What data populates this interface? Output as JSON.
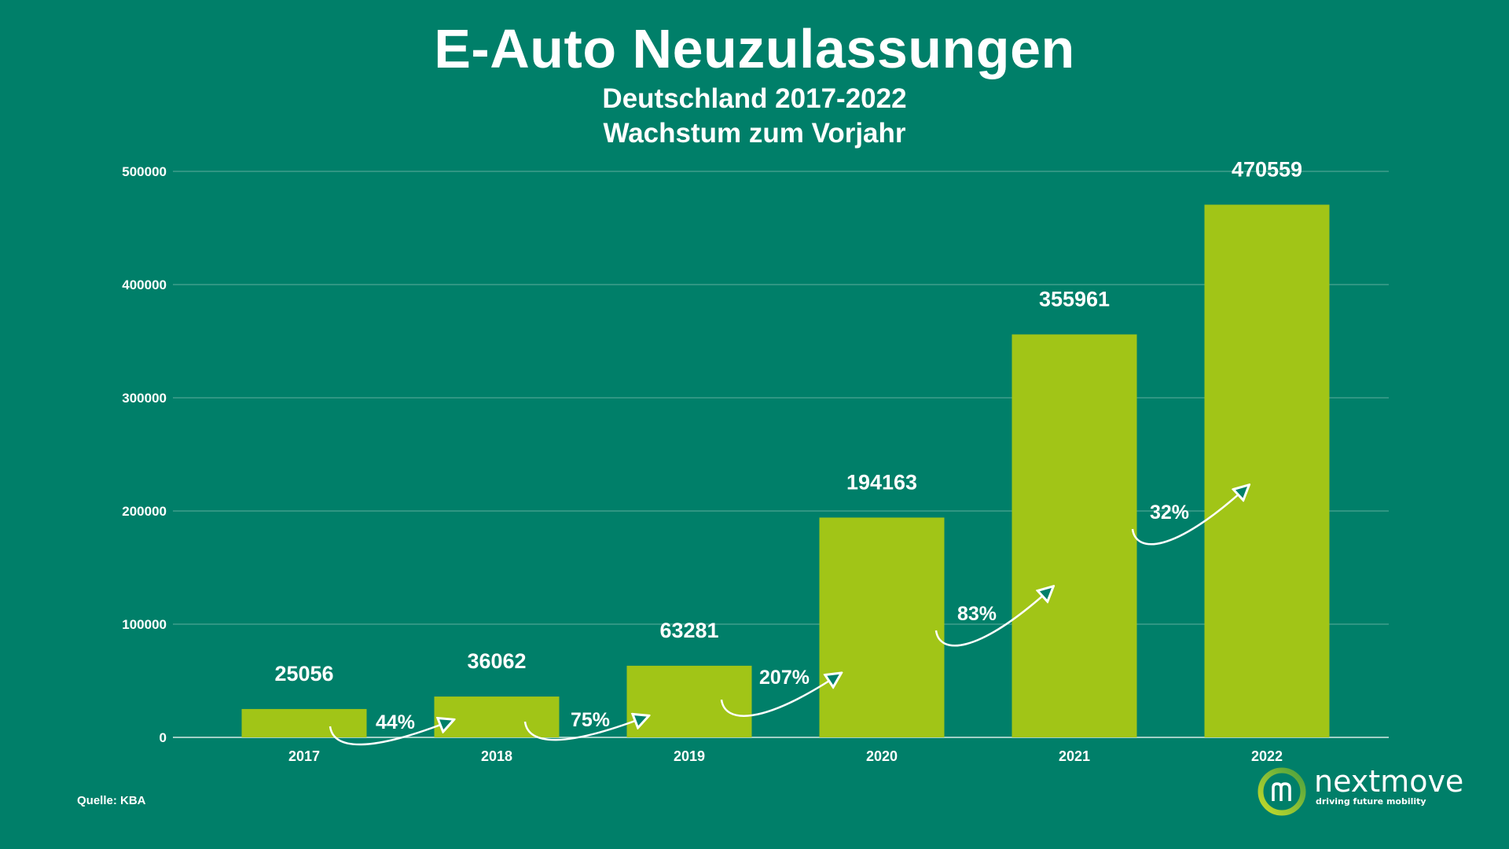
{
  "chart_data": {
    "type": "bar",
    "title": "E-Auto Neuzulassungen",
    "subtitle": [
      "Deutschland 2017-2022",
      "Wachstum zum Vorjahr"
    ],
    "categories": [
      "2017",
      "2018",
      "2019",
      "2020",
      "2021",
      "2022"
    ],
    "values": [
      25056,
      36062,
      63281,
      194163,
      355961,
      470559
    ],
    "growth_labels": [
      "44%",
      "75%",
      "207%",
      "83%",
      "32%"
    ],
    "yticks": [
      "0",
      "100000",
      "200000",
      "300000",
      "400000",
      "500000"
    ],
    "ylim": [
      0,
      500000
    ],
    "grid": true,
    "xlabel": "",
    "ylabel": ""
  },
  "colors": {
    "background": "#007f69",
    "bar": "#a1c517",
    "text": "#ffffff"
  },
  "source": "Quelle: KBA",
  "logo": {
    "name": "nextmove",
    "tagline": "driving future mobility"
  }
}
